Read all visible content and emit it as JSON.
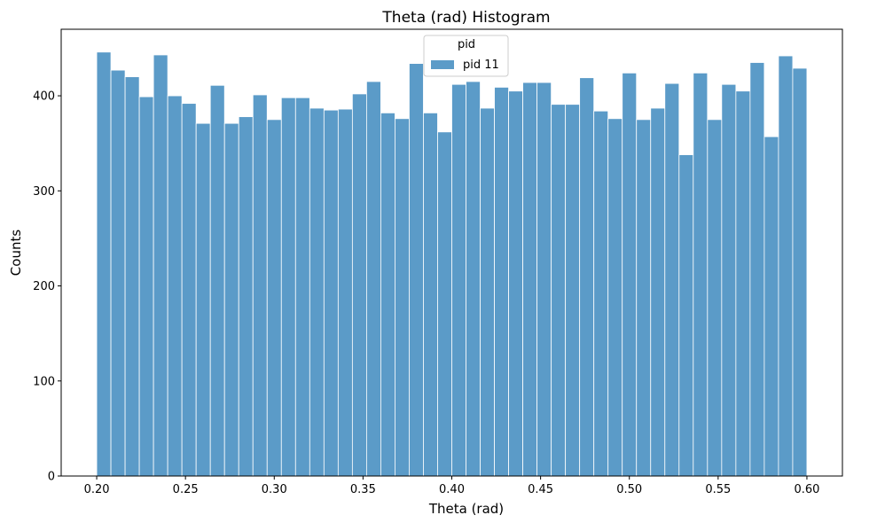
{
  "chart_data": {
    "type": "bar",
    "title": "Theta (rad) Histogram",
    "xlabel": "Theta (rad)",
    "ylabel": "Counts",
    "xlim": [
      0.18,
      0.62
    ],
    "ylim": [
      0,
      470
    ],
    "bin_start": 0.2,
    "bin_width": 0.008,
    "xticks": [
      "0.20",
      "0.25",
      "0.30",
      "0.35",
      "0.40",
      "0.45",
      "0.50",
      "0.55",
      "0.60"
    ],
    "yticks": [
      "0",
      "100",
      "200",
      "300",
      "400"
    ],
    "grid": false,
    "legend": {
      "title": "pid",
      "placement": "upper center"
    },
    "bar_color": "#5b9bc8",
    "series": [
      {
        "name": "pid 11",
        "values": [
          446,
          427,
          420,
          399,
          443,
          400,
          392,
          371,
          411,
          371,
          378,
          401,
          375,
          398,
          398,
          387,
          385,
          386,
          402,
          415,
          382,
          376,
          434,
          382,
          362,
          412,
          415,
          387,
          409,
          405,
          414,
          414,
          391,
          391,
          419,
          384,
          376,
          424,
          375,
          387,
          413,
          338,
          424,
          375,
          412,
          405,
          435,
          357,
          442,
          429
        ]
      }
    ]
  }
}
